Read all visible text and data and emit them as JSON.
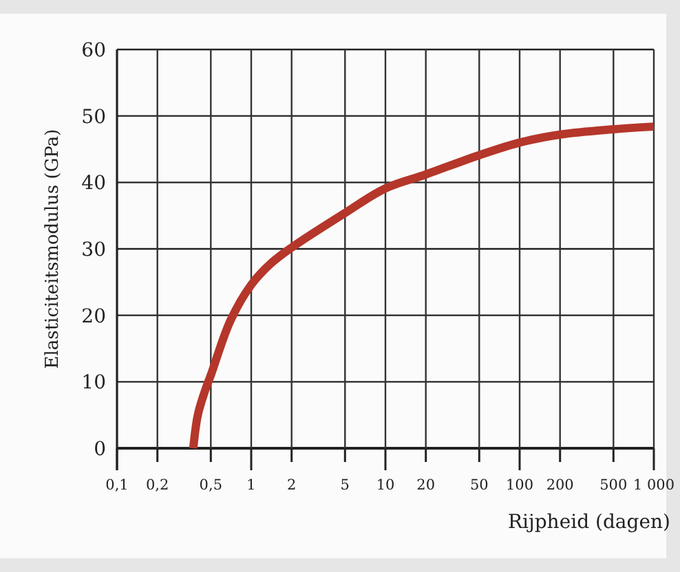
{
  "chart_data": {
    "type": "line",
    "xlabel": "Rijpheid (dagen)",
    "ylabel": "Elasticiteitsmodulus (GPa)",
    "log": "x",
    "grid": true,
    "xlim": [
      0.1,
      1000
    ],
    "ylim": [
      0,
      60
    ],
    "xticks": [
      {
        "value": 0.1,
        "label": "0,1"
      },
      {
        "value": 0.2,
        "label": "0,2"
      },
      {
        "value": 0.5,
        "label": "0,5"
      },
      1,
      2,
      5,
      10,
      20,
      50,
      100,
      200,
      500,
      {
        "value": 1000,
        "label": "1 000"
      }
    ],
    "yticks": [
      0,
      10,
      20,
      30,
      40,
      50,
      60
    ],
    "x": [
      0.37,
      0.4,
      0.45,
      0.5,
      0.7,
      1,
      1.4,
      2,
      5,
      10,
      20,
      50,
      100,
      200,
      500,
      1000
    ],
    "series": [
      {
        "color": "#b5362a",
        "values": [
          0,
          5,
          8.5,
          11,
          19.2,
          24.6,
          27.8,
          30.2,
          35.4,
          39.1,
          41.2,
          44.1,
          46,
          47.2,
          48,
          48.4
        ]
      }
    ]
  }
}
